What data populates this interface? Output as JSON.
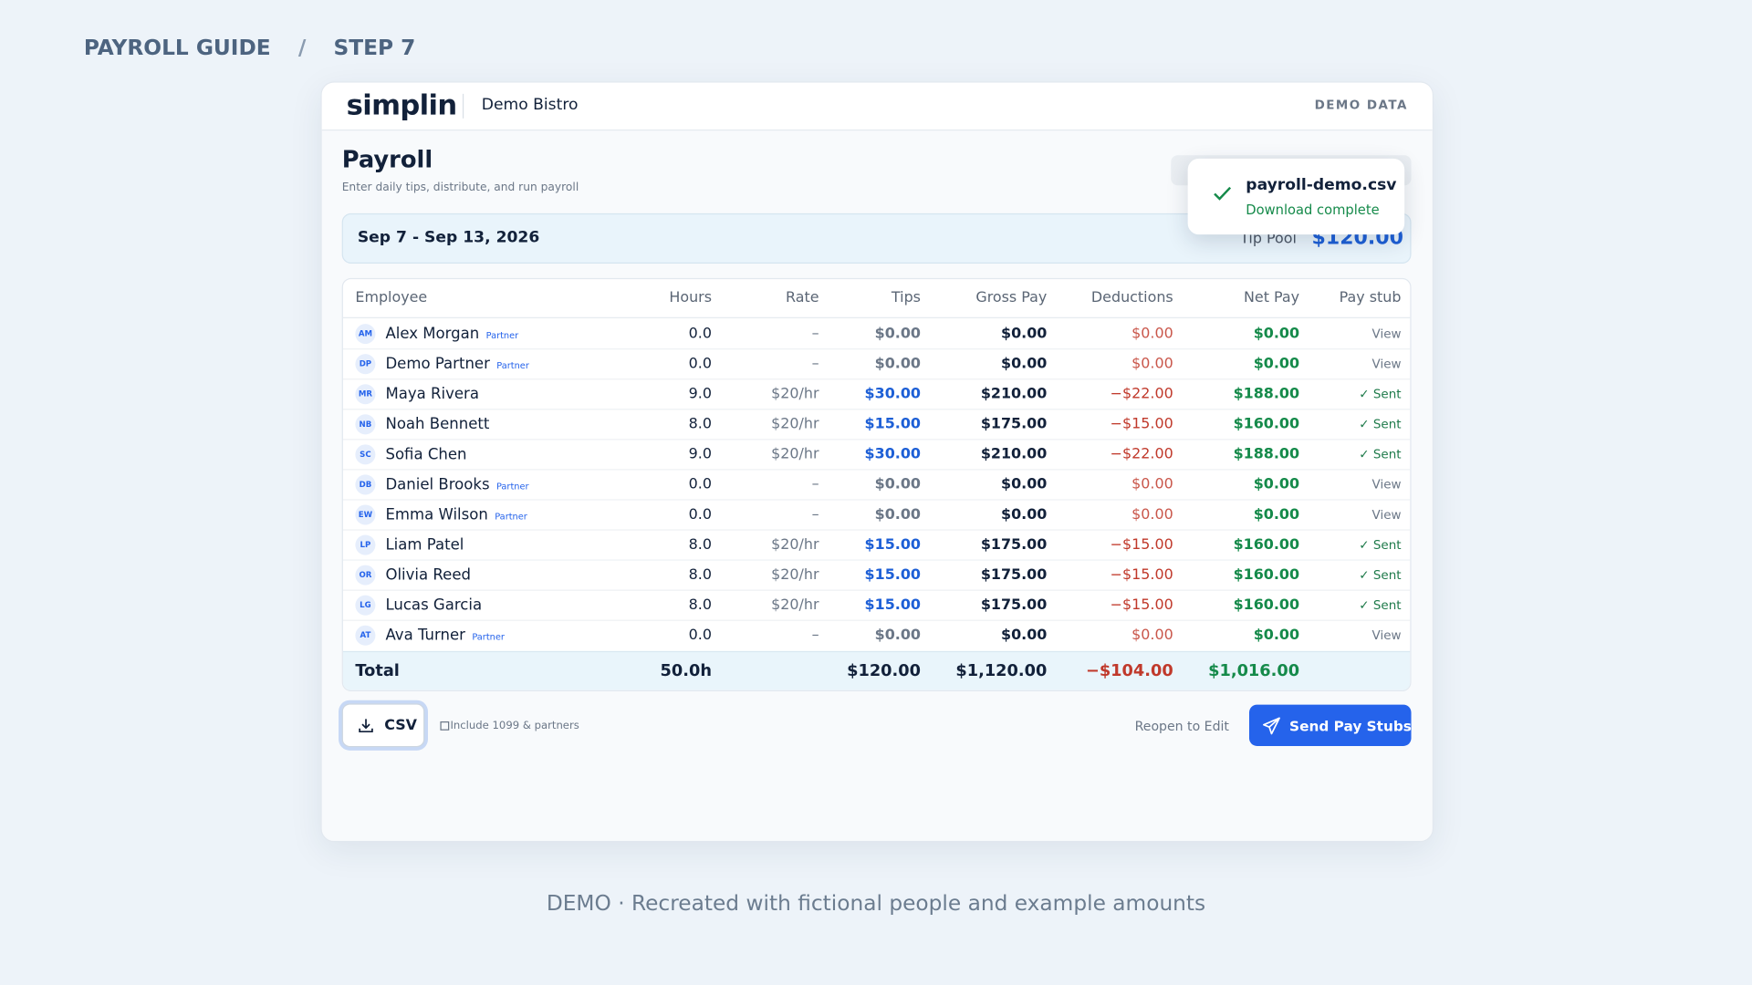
{
  "header": {
    "breadcrumb": [
      "PAYROLL GUIDE",
      "STEP 7"
    ],
    "separator": "/"
  },
  "app": {
    "logo": "simplin",
    "org": "Demo Bistro",
    "badge": "DEMO DATA"
  },
  "page": {
    "title": "Payroll",
    "subtitle": "Enter daily tips, distribute, and run payroll"
  },
  "period": {
    "range": "Sep 7 - Sep 13, 2026",
    "tip_pool_label": "Tip Pool",
    "tip_pool": "$120.00"
  },
  "toast": {
    "file": "payroll-demo.csv",
    "status": "Download complete"
  },
  "table": {
    "columns": [
      "Employee",
      "Hours",
      "Rate",
      "Tips",
      "Gross Pay",
      "Deductions",
      "Net Pay",
      "Pay stub"
    ],
    "rows": [
      {
        "initials": "AM",
        "name": "Alex Morgan",
        "tag": "Partner",
        "hours": "0.0",
        "rate": "–",
        "tips": "$0.00",
        "gross": "$0.00",
        "deductions": "$0.00",
        "net": "$0.00",
        "stub": "View"
      },
      {
        "initials": "DP",
        "name": "Demo Partner",
        "tag": "Partner",
        "hours": "0.0",
        "rate": "–",
        "tips": "$0.00",
        "gross": "$0.00",
        "deductions": "$0.00",
        "net": "$0.00",
        "stub": "View"
      },
      {
        "initials": "MR",
        "name": "Maya Rivera",
        "hours": "9.0",
        "rate": "$20/hr",
        "tips": "$30.00",
        "gross": "$210.00",
        "deductions": "−$22.00",
        "net": "$188.00",
        "stub": "✓ Sent"
      },
      {
        "initials": "NB",
        "name": "Noah Bennett",
        "hours": "8.0",
        "rate": "$20/hr",
        "tips": "$15.00",
        "gross": "$175.00",
        "deductions": "−$15.00",
        "net": "$160.00",
        "stub": "✓ Sent"
      },
      {
        "initials": "SC",
        "name": "Sofia Chen",
        "hours": "9.0",
        "rate": "$20/hr",
        "tips": "$30.00",
        "gross": "$210.00",
        "deductions": "−$22.00",
        "net": "$188.00",
        "stub": "✓ Sent"
      },
      {
        "initials": "DB",
        "name": "Daniel Brooks",
        "tag": "Partner",
        "hours": "0.0",
        "rate": "–",
        "tips": "$0.00",
        "gross": "$0.00",
        "deductions": "$0.00",
        "net": "$0.00",
        "stub": "View"
      },
      {
        "initials": "EW",
        "name": "Emma Wilson",
        "tag": "Partner",
        "hours": "0.0",
        "rate": "–",
        "tips": "$0.00",
        "gross": "$0.00",
        "deductions": "$0.00",
        "net": "$0.00",
        "stub": "View"
      },
      {
        "initials": "LP",
        "name": "Liam Patel",
        "hours": "8.0",
        "rate": "$20/hr",
        "tips": "$15.00",
        "gross": "$175.00",
        "deductions": "−$15.00",
        "net": "$160.00",
        "stub": "✓ Sent"
      },
      {
        "initials": "OR",
        "name": "Olivia Reed",
        "hours": "8.0",
        "rate": "$20/hr",
        "tips": "$15.00",
        "gross": "$175.00",
        "deductions": "−$15.00",
        "net": "$160.00",
        "stub": "✓ Sent"
      },
      {
        "initials": "LG",
        "name": "Lucas Garcia",
        "hours": "8.0",
        "rate": "$20/hr",
        "tips": "$15.00",
        "gross": "$175.00",
        "deductions": "−$15.00",
        "net": "$160.00",
        "stub": "✓ Sent"
      },
      {
        "initials": "AT",
        "name": "Ava Turner",
        "tag": "Partner",
        "hours": "0.0",
        "rate": "–",
        "tips": "$0.00",
        "gross": "$0.00",
        "deductions": "$0.00",
        "net": "$0.00",
        "stub": "View"
      }
    ],
    "total": {
      "label": "Total",
      "hours": "50.0h",
      "tips": "$120.00",
      "gross": "$1,120.00",
      "deductions": "−$104.00",
      "net": "$1,016.00"
    }
  },
  "actions": {
    "csv": "CSV",
    "checkbox": "Include 1099 & partners",
    "reopen": "Reopen to Edit",
    "send": "Send Pay Stubs"
  },
  "caption": "DEMO · Recreated with fictional people and example amounts"
}
